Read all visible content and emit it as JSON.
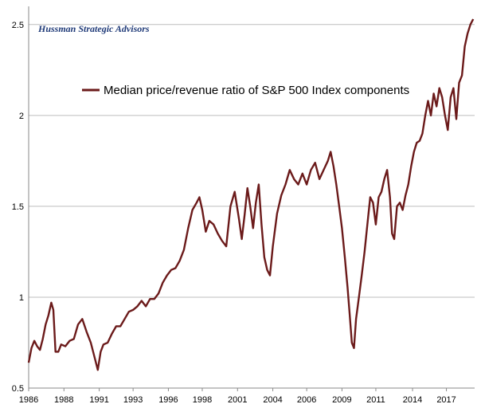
{
  "chart_data": {
    "type": "line",
    "title": "",
    "xlabel": "",
    "ylabel": "",
    "watermark": "Hussman Strategic Advisors",
    "grid": true,
    "legend_position": "top-left",
    "xlim": [
      1986.0,
      2017.6
    ],
    "ylim": [
      0.5,
      2.6
    ],
    "x_ticks": [
      "1986",
      "1988",
      "1991",
      "1993",
      "1996",
      "1998",
      "2001",
      "2004",
      "2006",
      "2009",
      "2011",
      "2014",
      "2017"
    ],
    "x_tick_values": [
      1986.0,
      1988.5,
      1991.0,
      1993.4,
      1995.9,
      1998.3,
      2000.8,
      2003.3,
      2005.7,
      2008.2,
      2010.6,
      2013.2,
      2015.6
    ],
    "y_ticks": [
      "0.5",
      "1",
      "1.5",
      "2",
      "2.5"
    ],
    "y_tick_values": [
      0.5,
      1.0,
      1.5,
      2.0,
      2.5
    ],
    "series": [
      {
        "name": "Median price/revenue ratio of S&P 500 Index components",
        "color": "#6b1a1a",
        "x": [
          1986.0,
          1986.2,
          1986.4,
          1986.6,
          1986.8,
          1987.0,
          1987.2,
          1987.4,
          1987.6,
          1987.75,
          1987.9,
          1988.1,
          1988.3,
          1988.6,
          1988.9,
          1989.2,
          1989.5,
          1989.8,
          1990.1,
          1990.4,
          1990.7,
          1990.9,
          1991.1,
          1991.3,
          1991.6,
          1991.9,
          1992.2,
          1992.5,
          1992.8,
          1993.1,
          1993.4,
          1993.7,
          1994.0,
          1994.3,
          1994.6,
          1994.9,
          1995.2,
          1995.5,
          1995.8,
          1996.1,
          1996.4,
          1996.7,
          1997.0,
          1997.3,
          1997.6,
          1997.9,
          1998.1,
          1998.3,
          1998.55,
          1998.8,
          1999.1,
          1999.4,
          1999.7,
          2000.0,
          2000.3,
          2000.6,
          2000.9,
          2001.1,
          2001.3,
          2001.5,
          2001.7,
          2001.9,
          2002.1,
          2002.3,
          2002.5,
          2002.7,
          2002.9,
          2003.1,
          2003.3,
          2003.6,
          2003.9,
          2004.2,
          2004.5,
          2004.8,
          2005.1,
          2005.4,
          2005.7,
          2006.0,
          2006.3,
          2006.6,
          2006.9,
          2007.2,
          2007.4,
          2007.6,
          2007.8,
          2008.0,
          2008.2,
          2008.4,
          2008.6,
          2008.75,
          2008.9,
          2009.05,
          2009.2,
          2009.4,
          2009.6,
          2009.8,
          2010.0,
          2010.2,
          2010.4,
          2010.6,
          2010.8,
          2011.0,
          2011.2,
          2011.4,
          2011.6,
          2011.75,
          2011.9,
          2012.1,
          2012.3,
          2012.5,
          2012.7,
          2012.9,
          2013.1,
          2013.3,
          2013.5,
          2013.7,
          2013.9,
          2014.1,
          2014.3,
          2014.5,
          2014.7,
          2014.9,
          2015.1,
          2015.3,
          2015.5,
          2015.7,
          2015.9,
          2016.1,
          2016.3,
          2016.5,
          2016.7,
          2016.9,
          2017.1,
          2017.3,
          2017.5
        ],
        "values": [
          0.64,
          0.72,
          0.76,
          0.73,
          0.71,
          0.77,
          0.85,
          0.9,
          0.97,
          0.93,
          0.7,
          0.7,
          0.74,
          0.73,
          0.76,
          0.77,
          0.85,
          0.88,
          0.81,
          0.75,
          0.66,
          0.6,
          0.7,
          0.74,
          0.75,
          0.8,
          0.84,
          0.84,
          0.88,
          0.92,
          0.93,
          0.95,
          0.98,
          0.95,
          0.99,
          0.99,
          1.02,
          1.08,
          1.12,
          1.15,
          1.16,
          1.2,
          1.26,
          1.38,
          1.48,
          1.52,
          1.55,
          1.48,
          1.36,
          1.42,
          1.4,
          1.35,
          1.31,
          1.28,
          1.5,
          1.58,
          1.43,
          1.32,
          1.45,
          1.6,
          1.5,
          1.38,
          1.52,
          1.62,
          1.4,
          1.22,
          1.15,
          1.12,
          1.28,
          1.46,
          1.56,
          1.62,
          1.7,
          1.65,
          1.62,
          1.68,
          1.62,
          1.7,
          1.74,
          1.65,
          1.7,
          1.75,
          1.8,
          1.72,
          1.62,
          1.5,
          1.38,
          1.22,
          1.05,
          0.9,
          0.75,
          0.72,
          0.88,
          1.0,
          1.12,
          1.25,
          1.4,
          1.55,
          1.52,
          1.4,
          1.55,
          1.58,
          1.65,
          1.7,
          1.55,
          1.35,
          1.32,
          1.5,
          1.52,
          1.48,
          1.56,
          1.62,
          1.72,
          1.8,
          1.85,
          1.86,
          1.9,
          2.0,
          2.08,
          2.0,
          2.12,
          2.05,
          2.15,
          2.1,
          2.0,
          1.92,
          2.1,
          2.15,
          1.98,
          2.18,
          2.22,
          2.38,
          2.45,
          2.5,
          2.53
        ]
      }
    ]
  }
}
